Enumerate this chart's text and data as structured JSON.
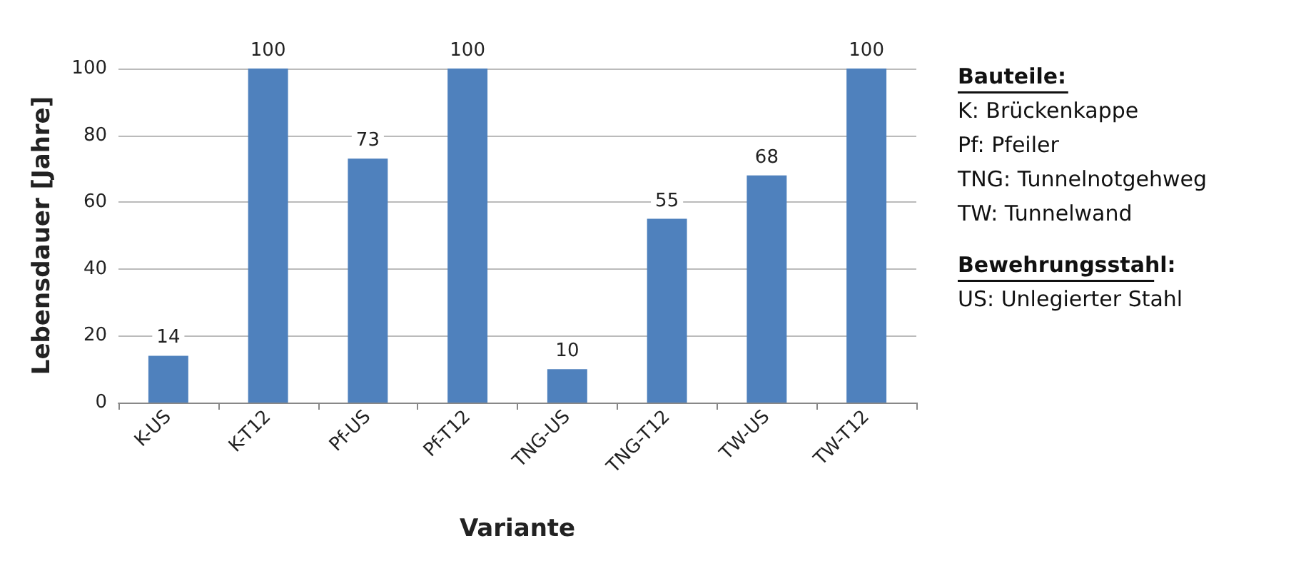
{
  "chart_data": {
    "type": "bar",
    "xlabel": "Variante",
    "ylabel": "Lebensdauer [Jahre]",
    "categories": [
      "K-US",
      "K-T12",
      "Pf-US",
      "Pf-T12",
      "TNG-US",
      "TNG-T12",
      "TW-US",
      "TW-T12"
    ],
    "values": [
      14,
      100,
      73,
      100,
      10,
      55,
      68,
      100
    ],
    "color": "#4f81bd",
    "ylim": [
      0,
      100
    ],
    "yticks": [
      0,
      20,
      40,
      60,
      80,
      100
    ],
    "grid": "y",
    "data_labels": true,
    "annotations": [
      "Bauteile:\nK: Brückenkappe\nPf: Pfeiler\nTNG: Tunnelnotgehweg\nTW: Tunnelwand",
      "Bewehrungsstahl:\nUS: Unlegierter Stahl"
    ]
  }
}
